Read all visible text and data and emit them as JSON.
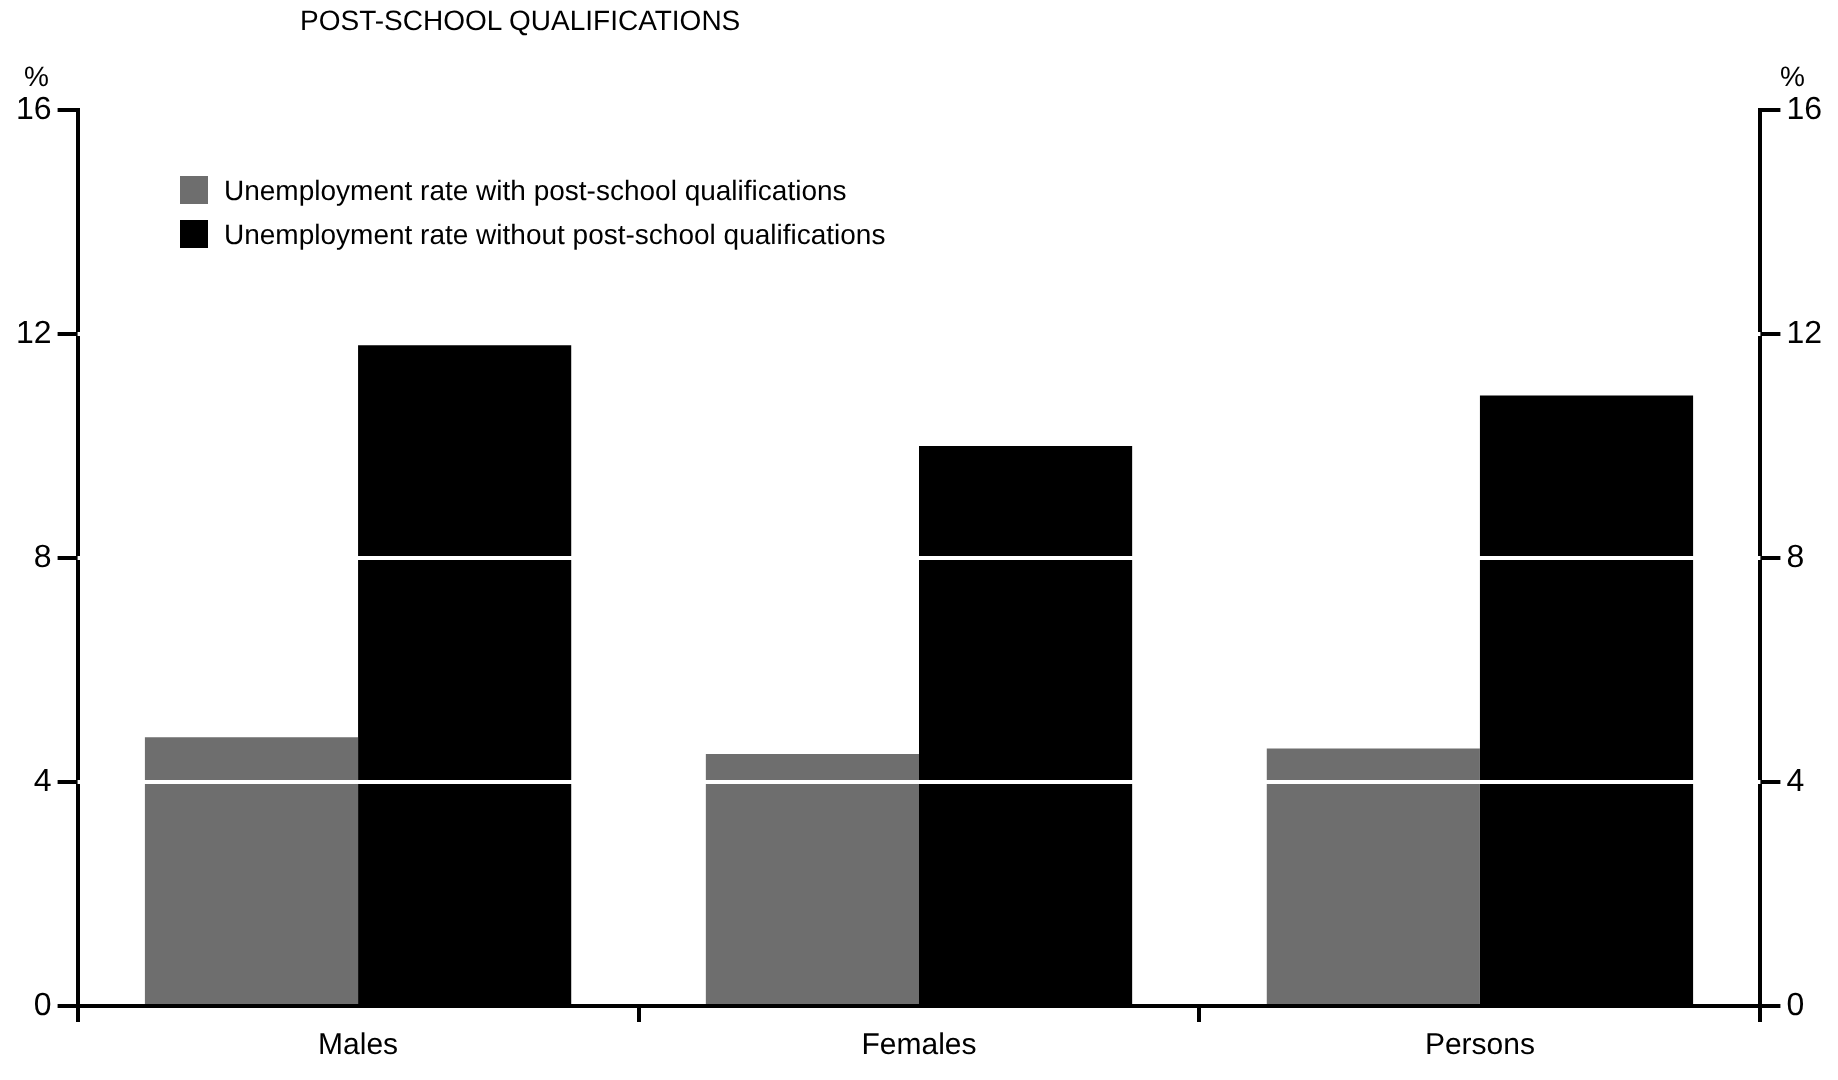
{
  "chart_data": {
    "type": "bar",
    "title": "POST-SCHOOL QUALIFICATIONS",
    "ylabel": "%",
    "y2label": "%",
    "categories": [
      "Males",
      "Females",
      "Persons"
    ],
    "series": [
      {
        "name": "Unemployment rate with post-school qualifications",
        "color": "#6e6e6e",
        "values": [
          4.8,
          4.5,
          4.6
        ]
      },
      {
        "name": "Unemployment rate without post-school qualifications",
        "color": "#000000",
        "values": [
          11.8,
          10.0,
          10.9
        ]
      }
    ],
    "ylim": [
      0,
      16
    ],
    "yticks": [
      0,
      4,
      8,
      12,
      16
    ],
    "y2lim": [
      0,
      16
    ],
    "y2ticks": [
      0,
      4,
      8,
      12,
      16
    ],
    "grid": "y",
    "legend": "top left"
  }
}
